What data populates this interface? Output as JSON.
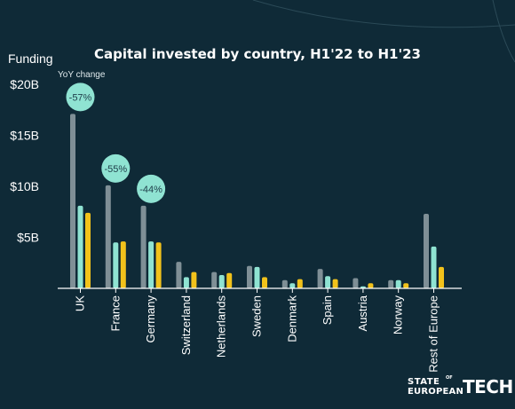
{
  "chart_data": {
    "type": "bar",
    "title": "Capital invested by country, H1'22 to H1'23",
    "ylabel": "Funding",
    "xlabel": "",
    "ylim": [
      0,
      20
    ],
    "yticks": [
      {
        "value": 5,
        "label": "$5B"
      },
      {
        "value": 10,
        "label": "$10B"
      },
      {
        "value": 15,
        "label": "$15B"
      },
      {
        "value": 20,
        "label": "$20B"
      }
    ],
    "categories": [
      "UK",
      "France",
      "Germany",
      "Switzerland",
      "Netherlands",
      "Sweden",
      "Denmark",
      "Spain",
      "Austria",
      "Norway",
      "Rest of Europe"
    ],
    "series": [
      {
        "values": [
          17.1,
          10.1,
          8.1,
          2.6,
          1.6,
          2.2,
          0.8,
          1.9,
          1.0,
          0.8,
          7.3
        ],
        "color": "#7f8f96"
      },
      {
        "values": [
          8.1,
          4.5,
          4.6,
          1.1,
          1.3,
          2.1,
          0.5,
          1.2,
          0.2,
          0.8,
          4.1
        ],
        "color": "#8fe3d2"
      },
      {
        "values": [
          7.4,
          4.6,
          4.5,
          1.6,
          1.5,
          1.1,
          0.9,
          0.9,
          0.5,
          0.5,
          2.1
        ],
        "color": "#f2c21b"
      }
    ],
    "annotations": {
      "heading": "YoY change",
      "items": [
        {
          "category": "UK",
          "text": "-57%"
        },
        {
          "category": "France",
          "text": "-55%"
        },
        {
          "category": "Germany",
          "text": "-44%"
        }
      ]
    },
    "bubble_color": "#8fe3d2",
    "grid": false,
    "legend": "none"
  },
  "branding": {
    "line1": "STATE",
    "of": "OF",
    "line2": "EUROPEAN",
    "tech": "TECH"
  },
  "colors": {
    "background": "#0f2a37",
    "text": "#ffffff",
    "axis": "#ffffff"
  }
}
